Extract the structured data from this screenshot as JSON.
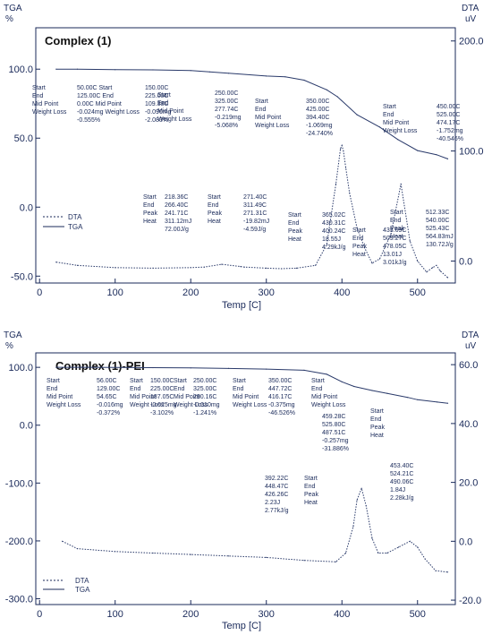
{
  "chart_data": [
    {
      "type": "line",
      "title": "Complex (1)",
      "xlabel": "Temp  [C]",
      "ylabel_left": "TGA\n%",
      "ylabel_right": "DTA\nuV",
      "x_ticks": [
        "0",
        "100",
        "200",
        "300",
        "400",
        "500"
      ],
      "y_left_ticks": [
        "100.0",
        "50.0",
        "0.0",
        "-50.0"
      ],
      "y_right_ticks": [
        "200.0",
        "100.0",
        "0.0"
      ],
      "xlim": [
        -5,
        550
      ],
      "y_left_lim": [
        -55,
        130
      ],
      "y_right_lim": [
        -20,
        212
      ],
      "legend": [
        "DTA",
        "TGA"
      ],
      "series": [
        {
          "name": "TGA",
          "axis": "left",
          "x": [
            22,
            50,
            100,
            150,
            200,
            225,
            250,
            300,
            325,
            350,
            380,
            394,
            420,
            450,
            474,
            500,
            525,
            540
          ],
          "y": [
            100,
            100,
            99.6,
            99.5,
            99,
            98,
            97,
            95,
            94.4,
            92,
            85,
            80,
            67,
            58,
            49,
            41,
            38,
            35
          ]
        },
        {
          "name": "DTA",
          "axis": "right",
          "x": [
            22,
            50,
            100,
            150,
            200,
            218,
            241,
            266,
            271,
            300,
            320,
            340,
            365,
            380,
            392,
            398,
            400,
            402,
            405,
            410,
            420,
            430,
            440,
            450,
            465,
            478,
            490,
            500,
            512,
            520,
            525,
            530,
            540
          ],
          "y": [
            -1,
            -4,
            -6,
            -6.5,
            -6,
            -5.5,
            -3,
            -5,
            -5.5,
            -6.5,
            -7,
            -6.5,
            -4,
            15,
            70,
            102,
            105,
            100,
            85,
            62,
            30,
            12,
            -2,
            2,
            25,
            70,
            18,
            0,
            -10,
            -6,
            -4,
            -9,
            -15
          ]
        }
      ],
      "annotations": [
        {
          "lines": [
            "Start",
            "End",
            "Mid Point",
            "Weight Loss"
          ]
        },
        {
          "lines": [
            "50.00C Start",
            "125.00C End",
            "0.00C Mid Point",
            "-0.024mg Weight Loss",
            "-0.555%"
          ]
        },
        {
          "lines": [
            "150.00C",
            "225.00C",
            "109.38C",
            "-0.090mg",
            "-2.083%"
          ]
        },
        {
          "lines": [
            "Start",
            "End",
            "Mid Point",
            "Weight Loss"
          ]
        },
        {
          "lines": [
            "250.00C",
            "325.00C",
            "277.74C",
            "-0.219mg",
            "-5.068%"
          ]
        },
        {
          "lines": [
            "Start",
            "End",
            "Mid Point",
            "Weight Loss"
          ]
        },
        {
          "lines": [
            "350.00C",
            "425.00C",
            "394.40C",
            "-1.069mg",
            "-24.740%"
          ]
        },
        {
          "lines": [
            "Start",
            "End",
            "Mid Point",
            "Weight Loss"
          ]
        },
        {
          "lines": [
            "450.00C",
            "525.00C",
            "474.17C",
            "-1.752mg",
            "-40.546%"
          ]
        },
        {
          "lines": [
            "Start",
            "End",
            "Peak",
            "Heat"
          ]
        },
        {
          "lines": [
            "218.36C",
            "266.40C",
            "241.71C",
            "311.12mJ",
            "72.00J/g"
          ]
        },
        {
          "lines": [
            "Start",
            "End",
            "Peak",
            "Heat"
          ]
        },
        {
          "lines": [
            "271.40C",
            "311.49C",
            "271.31C",
            "-19.82mJ",
            "-4.59J/g"
          ]
        },
        {
          "lines": [
            "Start",
            "End",
            "Peak",
            "Heat"
          ]
        },
        {
          "lines": [
            "365.02C",
            "430.31C",
            "400.24C",
            "18.55J",
            "4.29kJ/g"
          ]
        },
        {
          "lines": [
            "Start",
            "End",
            "Peak",
            "Heat"
          ]
        },
        {
          "lines": [
            "433.69C",
            "509.27C",
            "478.05C",
            "13.01J",
            "3.01kJ/g"
          ]
        },
        {
          "lines": [
            "Start",
            "End",
            "Peak",
            "Heat"
          ]
        },
        {
          "lines": [
            "512.33C",
            "540.00C",
            "525.43C",
            "564.83mJ",
            "130.72J/g"
          ]
        }
      ]
    },
    {
      "type": "line",
      "title": "Complex (1)-PEI",
      "xlabel": "Temp  [C]",
      "ylabel_left": "TGA\n%",
      "ylabel_right": "DTA\nuV",
      "x_ticks": [
        "0",
        "100",
        "200",
        "300",
        "400",
        "500"
      ],
      "y_left_ticks": [
        "100.0",
        "0.0",
        "-100.0",
        "-200.0",
        "-300.0"
      ],
      "y_right_ticks": [
        "60.0",
        "40.0",
        "20.0",
        "0.0",
        "-20.0"
      ],
      "xlim": [
        -5,
        550
      ],
      "y_left_lim": [
        -310,
        125
      ],
      "y_right_lim": [
        -21.5,
        64
      ],
      "legend": [
        "DTA",
        "TGA"
      ],
      "series": [
        {
          "name": "TGA",
          "axis": "left",
          "x": [
            22,
            56,
            100,
            150,
            200,
            250,
            300,
            350,
            380,
            400,
            416,
            440,
            460,
            487,
            500,
            526,
            540
          ],
          "y": [
            100,
            100,
            99.7,
            99.5,
            99,
            98,
            97,
            95,
            88,
            75,
            67,
            60,
            55,
            48,
            44,
            40,
            38
          ]
        },
        {
          "name": "DTA",
          "axis": "right",
          "x": [
            30,
            50,
            100,
            150,
            200,
            250,
            300,
            350,
            392,
            405,
            415,
            420,
            426,
            432,
            440,
            448,
            460,
            475,
            490,
            500,
            510,
            524,
            540
          ],
          "y": [
            0,
            -2.5,
            -3.5,
            -4,
            -4.5,
            -5,
            -5.5,
            -6.5,
            -7,
            -4,
            5,
            14,
            18,
            12,
            1,
            -4,
            -4,
            -2,
            0,
            -2,
            -6,
            -10,
            -10.5
          ]
        }
      ],
      "annotations": [
        {
          "lines": [
            "Start",
            "End",
            "Mid Point",
            "Weight Loss"
          ]
        },
        {
          "lines": [
            "56.00C",
            "129.00C",
            "54.65C",
            "-0.016mg",
            "-0.372%"
          ]
        },
        {
          "lines": [
            "Start",
            "End",
            "Mid Point",
            "Weight Loss"
          ]
        },
        {
          "lines": [
            "150.00C",
            "225.00C",
            "187.05C",
            "-0.025mg",
            "-3.102%"
          ]
        },
        {
          "lines": [
            "Start",
            "End",
            "Mid Point",
            "Weight Loss"
          ]
        },
        {
          "lines": [
            "250.00C",
            "325.00C",
            "290.16C",
            "-0.010mg",
            "-1.241%"
          ]
        },
        {
          "lines": [
            "Start",
            "End",
            "Mid Point",
            "Weight Loss"
          ]
        },
        {
          "lines": [
            "350.00C",
            "447.72C",
            "416.17C",
            "-0.375mg",
            "-46.526%"
          ]
        },
        {
          "lines": [
            "Start",
            "End",
            "Mid Point",
            "Weight Loss"
          ]
        },
        {
          "lines": [
            "459.28C",
            "525.80C",
            "487.51C",
            "-0.257mg",
            "-31.886%"
          ]
        },
        {
          "lines": [
            "Start",
            "End",
            "Peak",
            "Heat"
          ]
        },
        {
          "lines": [
            "392.22C",
            "448.47C",
            "426.26C",
            "2.23J",
            "2.77kJ/g"
          ]
        },
        {
          "lines": [
            "Start",
            "End",
            "Peak",
            "Heat"
          ]
        },
        {
          "lines": [
            "453.40C",
            "524.21C",
            "490.06C",
            "1.84J",
            "2.28kJ/g"
          ]
        }
      ]
    }
  ]
}
